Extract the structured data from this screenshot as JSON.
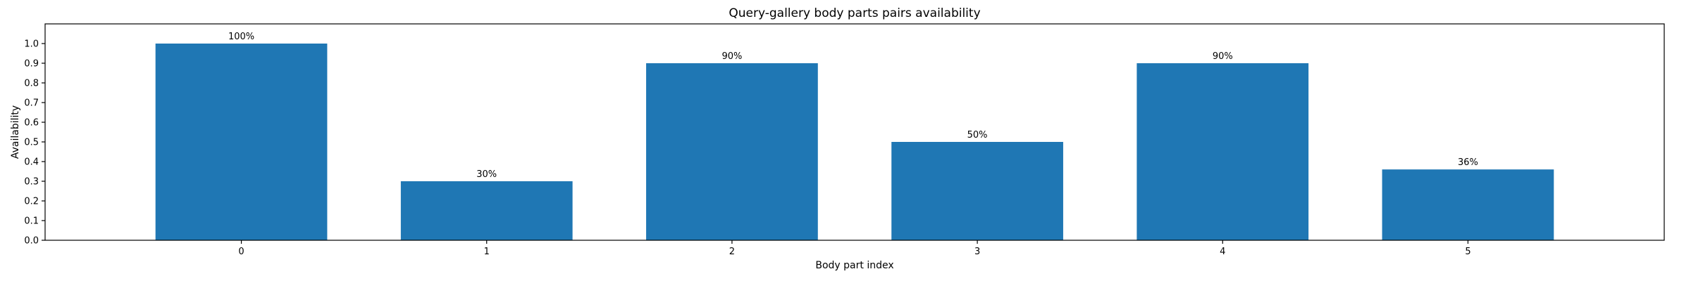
{
  "chart_data": {
    "type": "bar",
    "title": "Query-gallery body parts pairs availability",
    "xlabel": "Body part index",
    "ylabel": "Availability",
    "categories": [
      "0",
      "1",
      "2",
      "3",
      "4",
      "5"
    ],
    "values": [
      1.0,
      0.3,
      0.9,
      0.5,
      0.9,
      0.36
    ],
    "data_labels": [
      "100%",
      "30%",
      "90%",
      "50%",
      "90%",
      "36%"
    ],
    "ylim": [
      0,
      1.1
    ],
    "yticks": [
      "0.0",
      "0.1",
      "0.2",
      "0.3",
      "0.4",
      "0.5",
      "0.6",
      "0.7",
      "0.8",
      "0.9",
      "1.0"
    ],
    "grid": false,
    "bar_color": "#1f77b4"
  }
}
